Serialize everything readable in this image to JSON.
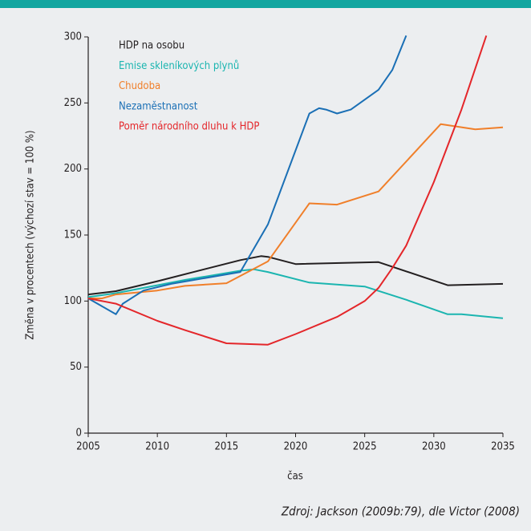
{
  "chart_data": {
    "type": "line",
    "xlabel": "čas",
    "ylabel": "Změna v procentech (výchozí stav = 100 %)",
    "source": "Zdroj: Jackson (2009b:79), dle Victor (2008)",
    "xlim": [
      2005,
      2035
    ],
    "xticks": [
      2005,
      2010,
      2015,
      2020,
      2025,
      2030,
      2035
    ],
    "ylim": [
      0,
      300
    ],
    "yticks": [
      0,
      50,
      100,
      150,
      200,
      250,
      300
    ],
    "series": [
      {
        "name": "HDP na osobu",
        "color": "#231f20",
        "x": [
          2005,
          2007,
          2010,
          2016,
          2017.5,
          2018,
          2020,
          2026,
          2031,
          2035
        ],
        "values": [
          105,
          107.5,
          115,
          131,
          134,
          133.5,
          128,
          129.5,
          112,
          113
        ]
      },
      {
        "name": "Emise skleníkových plynů",
        "color": "#1bb5b0",
        "x": [
          2005,
          2007,
          2010,
          2012,
          2016,
          2017,
          2018,
          2021,
          2025,
          2028,
          2031,
          2032,
          2035
        ],
        "values": [
          103,
          106,
          112,
          116,
          123,
          124,
          122,
          114,
          111,
          101,
          90,
          90,
          87
        ]
      },
      {
        "name": "Chudoba",
        "color": "#f07f2a",
        "x": [
          2005,
          2006,
          2007,
          2008,
          2010,
          2012,
          2015,
          2018,
          2021,
          2023,
          2026,
          2030.5,
          2033,
          2035
        ],
        "values": [
          102,
          102,
          105,
          106,
          108,
          111.5,
          113.5,
          130,
          174,
          173,
          183,
          234,
          230,
          231.5
        ]
      },
      {
        "name": "Nezaměstnanost",
        "color": "#1a6fb5",
        "x": [
          2005,
          2007,
          2007.5,
          2009,
          2011,
          2016,
          2018,
          2021,
          2021.7,
          2022.2,
          2023,
          2024,
          2026,
          2027,
          2028
        ],
        "values": [
          102,
          90,
          98,
          108,
          113,
          122,
          158,
          242,
          246,
          245,
          242,
          245,
          260,
          275,
          301
        ]
      },
      {
        "name": "Poměr národního dluhu k HDP",
        "color": "#e4262a",
        "x": [
          2005,
          2007,
          2010,
          2012,
          2015,
          2018,
          2020,
          2023,
          2025,
          2026,
          2027,
          2028,
          2030,
          2032,
          2033.8
        ],
        "values": [
          102,
          98,
          85,
          78,
          68,
          67,
          75,
          88,
          100,
          110,
          125,
          142,
          190,
          245,
          301
        ]
      }
    ]
  }
}
